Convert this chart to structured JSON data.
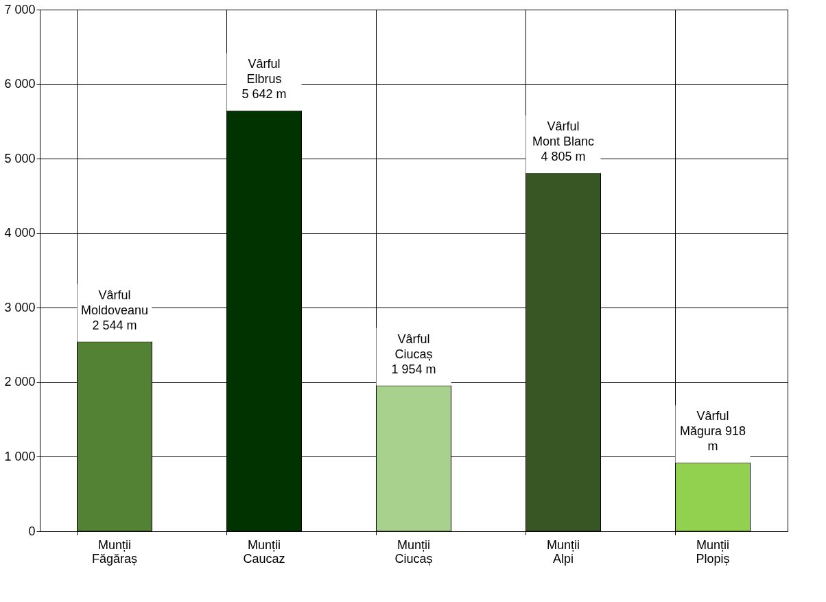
{
  "chart_data": {
    "type": "bar",
    "categories": [
      "Munții Făgăraș",
      "Munții Caucaz",
      "Munții Ciucaș",
      "Munții Alpi",
      "Munții Plopiș"
    ],
    "values": [
      2544,
      5642,
      1954,
      4805,
      918
    ],
    "colors": [
      "#548235",
      "#003300",
      "#a9d18e",
      "#375623",
      "#92d050"
    ],
    "value_labels": [
      "Vârful Moldoveanu 2 544 m",
      "Vârful Elbrus 5 642 m",
      "Vârful Ciucaș 1 954 m",
      "Vârful Mont Blanc 4 805 m",
      "Vârful Măgura 918 m"
    ],
    "ylim": [
      0,
      7000
    ],
    "yticks": [
      0,
      {
        "value": 1000,
        "label": "1 000"
      },
      {
        "value": 2000,
        "label": "2 000"
      },
      {
        "value": 3000,
        "label": "3 000"
      },
      {
        "value": 4000,
        "label": "4 000"
      },
      {
        "value": 5000,
        "label": "5 000"
      },
      {
        "value": 6000,
        "label": "6 000"
      },
      {
        "value": 7000,
        "label": "7 000"
      }
    ],
    "grid": true
  }
}
